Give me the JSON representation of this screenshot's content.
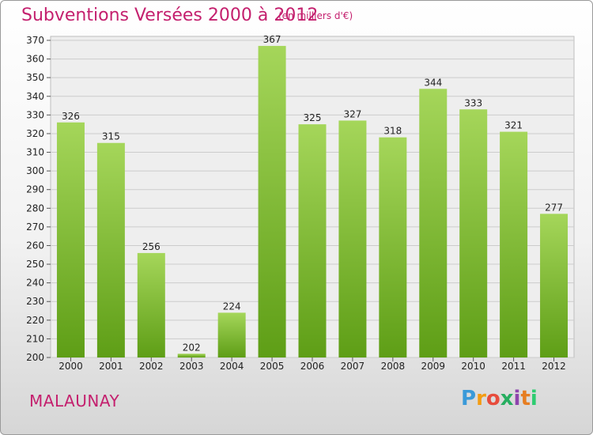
{
  "title": "Subventions Versées 2000 à 2012",
  "subtitle": "(en milliers d'€)",
  "commune": "MALAUNAY",
  "logo_text": "Proxiti",
  "colors": {
    "title": "#c4206e",
    "bar_top": "#a5d65a",
    "bar_bottom": "#5e9e16",
    "grid": "#cccccc",
    "plot_bg": "#eeeeee"
  },
  "chart_data": {
    "type": "bar",
    "categories": [
      "2000",
      "2001",
      "2002",
      "2003",
      "2004",
      "2005",
      "2006",
      "2007",
      "2008",
      "2009",
      "2010",
      "2011",
      "2012"
    ],
    "values": [
      326,
      315,
      256,
      202,
      224,
      367,
      325,
      327,
      318,
      344,
      333,
      321,
      277
    ],
    "ylim": [
      200,
      370
    ],
    "yticks": [
      200,
      210,
      220,
      230,
      240,
      250,
      260,
      270,
      280,
      290,
      300,
      310,
      320,
      330,
      340,
      350,
      360,
      370
    ],
    "grid": true,
    "title": "Subventions Versées 2000 à 2012",
    "xlabel": "",
    "ylabel": ""
  }
}
